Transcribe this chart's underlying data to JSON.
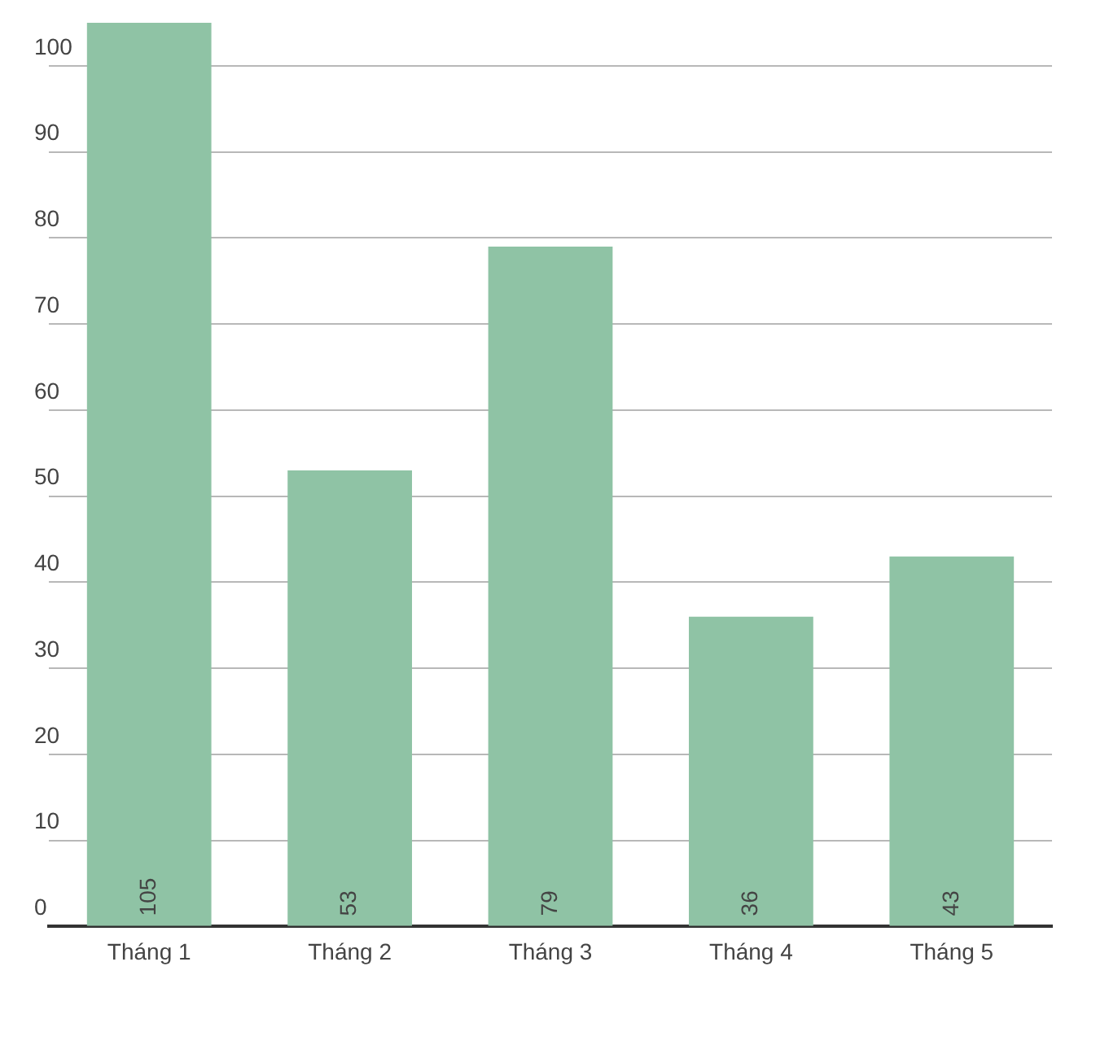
{
  "chart_data": {
    "type": "bar",
    "categories": [
      "Tháng 1",
      "Tháng 2",
      "Tháng 3",
      "Tháng 4",
      "Tháng 5"
    ],
    "values": [
      105,
      53,
      79,
      36,
      43
    ],
    "color": "#8fc3a5",
    "data_labels": true,
    "ylim": [
      0,
      105
    ],
    "yticks": [
      0,
      10,
      20,
      30,
      40,
      50,
      60,
      70,
      80,
      90,
      100
    ],
    "grid": "y",
    "legend": false
  }
}
